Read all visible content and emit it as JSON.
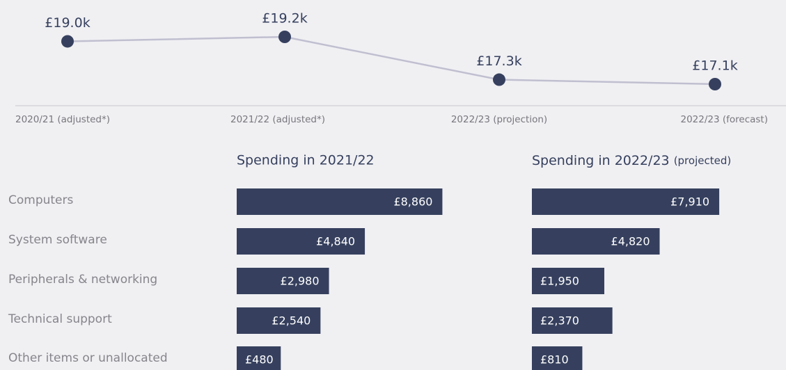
{
  "chart_data": [
    {
      "type": "line",
      "categories": [
        "2020/21 (adjusted*)",
        "2021/22 (adjusted*)",
        "2022/23 (projection)",
        "2022/23 (forecast)"
      ],
      "values": [
        19.0,
        19.2,
        17.3,
        17.1
      ],
      "value_labels": [
        "£19.0k",
        "£19.2k",
        "£17.3k",
        "£17.1k"
      ],
      "color": "#36405e",
      "line_color": "#c0bfd0"
    },
    {
      "type": "barh",
      "title": "Spending in 2021/22",
      "categories": [
        "Computers",
        "System software",
        "Peripherals & networking",
        "Technical support",
        "Other items or unallocated"
      ],
      "values": [
        8860,
        4840,
        2980,
        2540,
        480
      ],
      "value_labels": [
        "£8,860",
        "£4,840",
        "£2,980",
        "£2,540",
        "£480"
      ],
      "color": "#36405e"
    },
    {
      "type": "barh",
      "title": "Spending in 2022/23",
      "subtitle": "(projected)",
      "values": [
        7910,
        4820,
        1950,
        2370,
        810
      ],
      "value_labels": [
        "£7,910",
        "£4,820",
        "£1,950",
        "£2,370",
        "£810"
      ],
      "color": "#36405e"
    }
  ]
}
